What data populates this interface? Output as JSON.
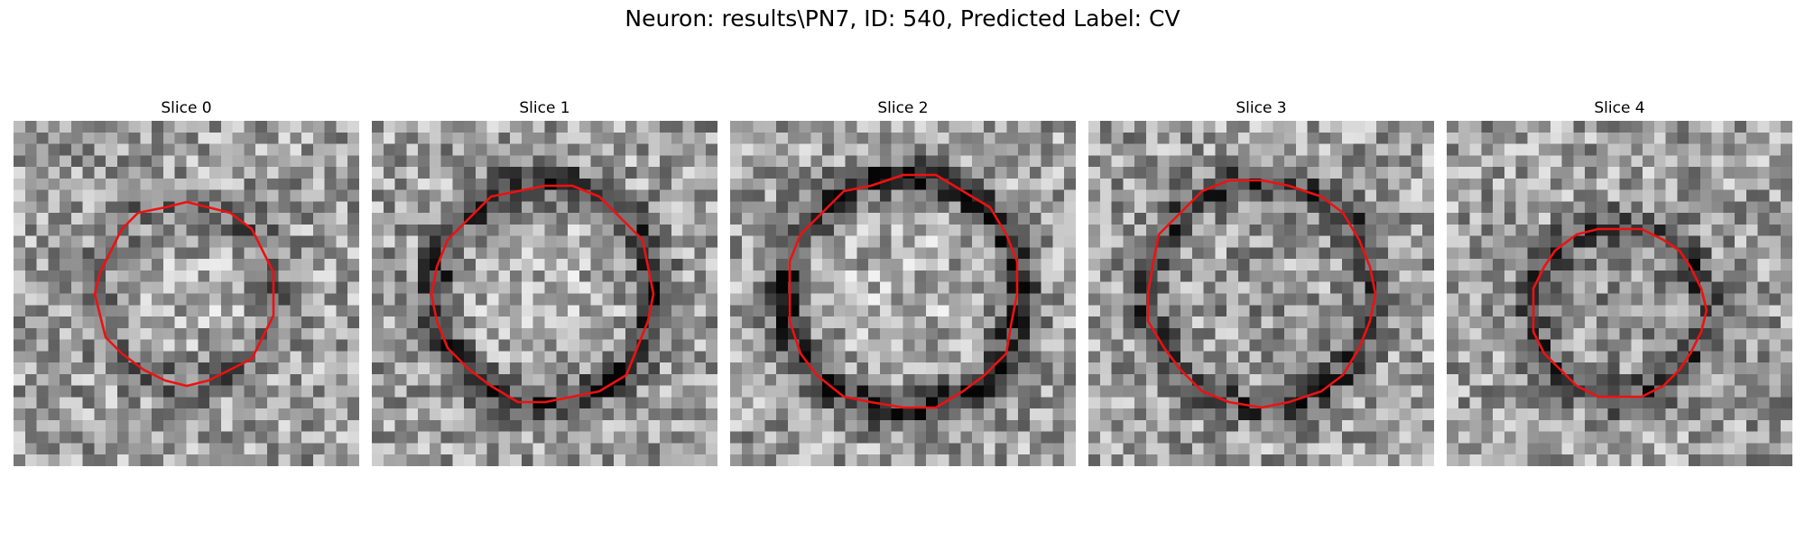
{
  "figure": {
    "title": "Neuron: results\\PN7, ID: 540, Predicted Label: CV",
    "overlay_color": "#ee1111",
    "colormap": "gray"
  },
  "slices": [
    {
      "title": "Slice 0",
      "contour_diameter_fraction": 0.52,
      "ring_darkness": 0.35,
      "center_brightness": 0.25
    },
    {
      "title": "Slice 1",
      "contour_diameter_fraction": 0.64,
      "ring_darkness": 0.7,
      "center_brightness": 0.25
    },
    {
      "title": "Slice 2",
      "contour_diameter_fraction": 0.68,
      "ring_darkness": 0.75,
      "center_brightness": 0.3
    },
    {
      "title": "Slice 3",
      "contour_diameter_fraction": 0.66,
      "ring_darkness": 0.6,
      "center_brightness": -0.1
    },
    {
      "title": "Slice 4",
      "contour_diameter_fraction": 0.5,
      "ring_darkness": 0.55,
      "center_brightness": -0.25
    }
  ]
}
